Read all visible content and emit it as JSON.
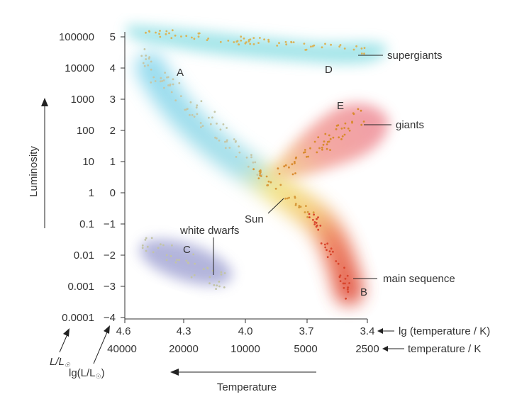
{
  "y_axis": {
    "title": "Luminosity",
    "luminosity_ticks": [
      "100000",
      "10000",
      "1000",
      "100",
      "10",
      "1",
      "0.1",
      "0.01",
      "0.001",
      "0.0001"
    ],
    "log_ticks": [
      "5",
      "4",
      "3",
      "2",
      "1",
      "0",
      "−1",
      "−2",
      "−3",
      "−4"
    ],
    "unit_label": {
      "prefix": "L/L",
      "sub": "☉"
    },
    "log_label": {
      "prefix": "lg(L/L",
      "sub": "☉",
      "suffix": ")"
    }
  },
  "x_axis": {
    "log_ticks": [
      "4.6",
      "4.3",
      "4.0",
      "3.7",
      "3.4"
    ],
    "temp_ticks": [
      "40000",
      "20000",
      "10000",
      "5000",
      "2500"
    ],
    "log_label": "lg (temperature / K)",
    "temp_label": "temperature / K",
    "title": "Temperature"
  },
  "regions": {
    "A": "A",
    "B": "B",
    "C": "C",
    "D": "D",
    "E": "E"
  },
  "labels": {
    "supergiants": "supergiants",
    "giants": "giants",
    "main_sequence": "main sequence",
    "white_dwarfs": "white dwarfs",
    "sun": "Sun"
  },
  "colors": {
    "supergiants_band": "#8fdfe4",
    "main_sequence_hot": "#8ad8ea",
    "main_sequence_mid": "#f4e07a",
    "main_sequence_cool": "#e8533a",
    "giants_band": "#f2a8a8",
    "white_dwarfs_band": "#a6a8d6",
    "dots": "#e0a850"
  }
}
